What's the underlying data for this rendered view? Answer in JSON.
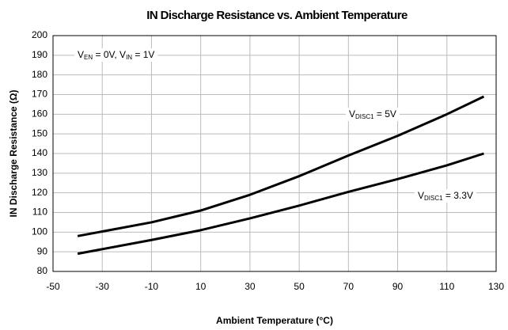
{
  "chart_data": {
    "type": "line",
    "title": "IN Discharge Resistance vs. Ambient Temperature",
    "x_label": "Ambient Temperature (°C)",
    "y_label": "IN Discharge Resistance (Ω)",
    "annotation": [
      "V",
      "EN",
      " = 0V, V",
      "IN",
      " = 1V"
    ],
    "x": [
      -40,
      -10,
      10,
      30,
      50,
      70,
      90,
      110,
      125
    ],
    "series": [
      {
        "label": [
          "V",
          "DISC1",
          " = 5V"
        ],
        "color": "#000000",
        "values": [
          98,
          105,
          111,
          119,
          128.5,
          139,
          149,
          160,
          169
        ]
      },
      {
        "label": [
          "V",
          "DISC1",
          " = 3.3V"
        ],
        "color": "#000000",
        "values": [
          89,
          96,
          101,
          107,
          113.5,
          120.5,
          127,
          134,
          140
        ]
      }
    ],
    "xlim": [
      -50,
      130
    ],
    "xticks": [
      -50,
      -30,
      -10,
      10,
      30,
      50,
      70,
      90,
      110,
      130
    ],
    "ylim": [
      80,
      200
    ],
    "yticks": [
      80,
      90,
      100,
      110,
      120,
      130,
      140,
      150,
      160,
      170,
      180,
      190,
      200
    ],
    "grid": true
  }
}
